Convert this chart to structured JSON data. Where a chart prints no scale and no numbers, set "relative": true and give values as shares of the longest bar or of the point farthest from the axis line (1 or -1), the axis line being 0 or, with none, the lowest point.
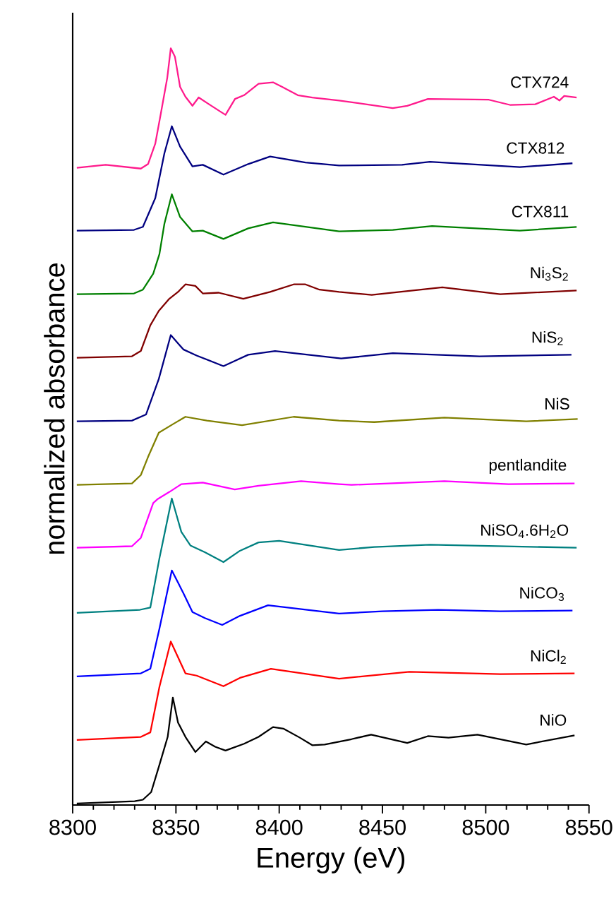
{
  "chart_data": {
    "type": "line",
    "xlabel": "Energy (eV)",
    "ylabel": "normalized absorbance",
    "relative": true,
    "marker": "none",
    "xlim": [
      8300,
      8550
    ],
    "xticks": [
      8300,
      8350,
      8400,
      8450,
      8500,
      8550
    ],
    "series": [
      {
        "name": "CTX724",
        "color": "#ff1a8c",
        "x": [
          8302,
          8316,
          8333,
          8336.5,
          8340,
          8342.7,
          8345.8,
          8347.5,
          8349.5,
          8352,
          8354.6,
          8358,
          8361,
          8366,
          8371.7,
          8374,
          8378.6,
          8383,
          8390,
          8397,
          8401.4,
          8409,
          8416,
          8429,
          8455,
          8462,
          8472,
          8501.5,
          8512,
          8524,
          8533,
          8535.7,
          8538,
          8544
        ],
        "values": [
          0.842,
          0.846,
          0.841,
          0.847,
          0.874,
          0.914,
          0.961,
          1.0,
          0.989,
          0.949,
          0.936,
          0.924,
          0.935,
          0.926,
          0.916,
          0.912,
          0.933,
          0.938,
          0.953,
          0.955,
          0.949,
          0.938,
          0.935,
          0.931,
          0.921,
          0.924,
          0.933,
          0.932,
          0.925,
          0.926,
          0.936,
          0.931,
          0.937,
          0.935
        ]
      },
      {
        "name": "CTX812",
        "color": "#000080",
        "x": [
          8302,
          8329.7,
          8334,
          8340,
          8344.4,
          8348,
          8352,
          8358,
          8363,
          8373,
          8385,
          8395.6,
          8412.7,
          8429,
          8459.5,
          8473,
          8516.5,
          8542
        ],
        "values": [
          0.759,
          0.76,
          0.764,
          0.802,
          0.861,
          0.897,
          0.87,
          0.844,
          0.846,
          0.833,
          0.847,
          0.857,
          0.849,
          0.845,
          0.846,
          0.85,
          0.843,
          0.848
        ]
      },
      {
        "name": "CTX811",
        "color": "#008000",
        "x": [
          8302,
          8329.7,
          8334,
          8339,
          8342,
          8344.4,
          8348,
          8352,
          8358,
          8363,
          8373,
          8385,
          8397,
          8429,
          8455,
          8474,
          8516.5,
          8544
        ],
        "values": [
          0.675,
          0.676,
          0.681,
          0.702,
          0.728,
          0.768,
          0.807,
          0.777,
          0.758,
          0.759,
          0.748,
          0.762,
          0.77,
          0.758,
          0.76,
          0.765,
          0.759,
          0.764
        ]
      },
      {
        "name": "Ni$_{3}$S$_{2}$",
        "color": "#800000",
        "x": [
          8302,
          8328.7,
          8333,
          8337.6,
          8341.7,
          8346.8,
          8351,
          8354.6,
          8359.4,
          8363,
          8370.7,
          8382.6,
          8395.6,
          8407,
          8412.7,
          8419.5,
          8429,
          8444.8,
          8479,
          8507,
          8544
        ],
        "values": [
          0.591,
          0.593,
          0.6,
          0.634,
          0.653,
          0.669,
          0.678,
          0.688,
          0.686,
          0.676,
          0.677,
          0.669,
          0.678,
          0.688,
          0.688,
          0.681,
          0.678,
          0.674,
          0.684,
          0.675,
          0.68
        ]
      },
      {
        "name": "NiS$_{2}$",
        "color": "#000080",
        "x": [
          8302,
          8328.7,
          8335.5,
          8341.7,
          8347.5,
          8353.6,
          8360,
          8373,
          8385,
          8398,
          8430,
          8455,
          8497,
          8541.5
        ],
        "values": [
          0.507,
          0.508,
          0.516,
          0.563,
          0.621,
          0.602,
          0.594,
          0.58,
          0.595,
          0.6,
          0.59,
          0.597,
          0.593,
          0.595
        ]
      },
      {
        "name": "NiS",
        "color": "#808000",
        "x": [
          8302,
          8328.7,
          8333,
          8336.5,
          8341.7,
          8349,
          8354.6,
          8365,
          8382,
          8407,
          8429,
          8446,
          8480,
          8519.6,
          8544.5
        ],
        "values": [
          0.423,
          0.425,
          0.436,
          0.46,
          0.492,
          0.504,
          0.513,
          0.508,
          0.502,
          0.513,
          0.508,
          0.506,
          0.512,
          0.507,
          0.51
        ]
      },
      {
        "name": "pentlandite",
        "color": "#ff00ff",
        "x": [
          8302,
          8328.7,
          8333,
          8339,
          8341,
          8347,
          8352.6,
          8363,
          8378.5,
          8390,
          8410.6,
          8429,
          8435,
          8480,
          8511,
          8543
        ],
        "values": [
          0.34,
          0.342,
          0.353,
          0.399,
          0.404,
          0.414,
          0.424,
          0.426,
          0.417,
          0.422,
          0.428,
          0.424,
          0.423,
          0.428,
          0.424,
          0.425
        ]
      },
      {
        "name": "NiSO$_{4}$.6H$_{2}$O",
        "color": "#008080",
        "x": [
          8302,
          8332.6,
          8337.6,
          8342,
          8348,
          8352.6,
          8357,
          8364,
          8373,
          8381,
          8390,
          8400,
          8429,
          8446,
          8473,
          8544
        ],
        "values": [
          0.254,
          0.258,
          0.261,
          0.326,
          0.405,
          0.361,
          0.343,
          0.334,
          0.321,
          0.336,
          0.347,
          0.349,
          0.337,
          0.341,
          0.344,
          0.34
        ]
      },
      {
        "name": "NiCO$_{3}$",
        "color": "#0000ff",
        "x": [
          8302,
          8333,
          8337.6,
          8342,
          8348,
          8353.6,
          8358,
          8364,
          8372.4,
          8381,
          8394.6,
          8429,
          8450,
          8477,
          8507,
          8542
        ],
        "values": [
          0.17,
          0.174,
          0.18,
          0.233,
          0.31,
          0.28,
          0.255,
          0.247,
          0.238,
          0.25,
          0.264,
          0.253,
          0.256,
          0.258,
          0.256,
          0.257
        ]
      },
      {
        "name": "NiCl$_{2}$",
        "color": "#ff0000",
        "x": [
          8302,
          8333,
          8337.6,
          8342,
          8347.5,
          8354.6,
          8360,
          8373,
          8381,
          8396,
          8429,
          8463,
          8507,
          8543
        ],
        "values": [
          0.086,
          0.09,
          0.096,
          0.156,
          0.216,
          0.174,
          0.171,
          0.157,
          0.168,
          0.18,
          0.167,
          0.176,
          0.173,
          0.174
        ]
      },
      {
        "name": "NiO",
        "color": "#000000",
        "x": [
          8302,
          8330,
          8334,
          8338,
          8342,
          8346,
          8348.5,
          8351,
          8354.6,
          8359.4,
          8364.5,
          8369,
          8374,
          8383,
          8390,
          8397,
          8402,
          8410,
          8416,
          8422,
          8435,
          8444.5,
          8462,
          8472,
          8482,
          8496,
          8519.6,
          8543
        ],
        "values": [
          0.002,
          0.005,
          0.007,
          0.017,
          0.053,
          0.09,
          0.142,
          0.109,
          0.09,
          0.07,
          0.084,
          0.077,
          0.072,
          0.081,
          0.09,
          0.103,
          0.101,
          0.089,
          0.079,
          0.08,
          0.087,
          0.093,
          0.082,
          0.091,
          0.089,
          0.093,
          0.08,
          0.092
        ]
      }
    ]
  }
}
